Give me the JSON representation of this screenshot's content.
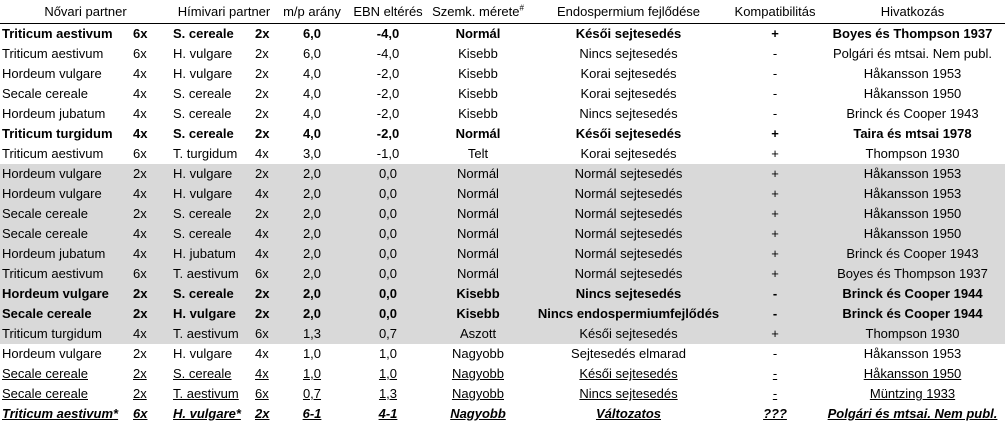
{
  "headers": {
    "female": "Nővari partner",
    "male": "Hímivari partner",
    "mp": "m/p arány",
    "ebn": "EBN eltérés",
    "seed": "Szemk. mérete",
    "seed_mark": "#",
    "endo": "Endospermium fejlődése",
    "compat": "Kompatibilitás",
    "ref": "Hivatkozás"
  },
  "rows": [
    {
      "style": "bold",
      "f": "Triticum aestivum",
      "fp": "6x",
      "m": "S. cereale",
      "mp": "2x",
      "ratio": "6,0",
      "ebn": "-4,0",
      "seed": "Normál",
      "endo": "Késői sejtesedés",
      "compat": "+",
      "ref": "Boyes és Thompson 1937"
    },
    {
      "style": "",
      "f": "Triticum aestivum",
      "fp": "6x",
      "m": "H. vulgare",
      "mp": "2x",
      "ratio": "6,0",
      "ebn": "-4,0",
      "seed": "Kisebb",
      "endo": "Nincs sejtesedés",
      "compat": "-",
      "ref": "Polgári és mtsai. Nem publ."
    },
    {
      "style": "",
      "f": "Hordeum vulgare",
      "fp": "4x",
      "m": "H. vulgare",
      "mp": "2x",
      "ratio": "4,0",
      "ebn": "-2,0",
      "seed": "Kisebb",
      "endo": "Korai sejtesedés",
      "compat": "-",
      "ref": "Håkansson 1953"
    },
    {
      "style": "",
      "f": "Secale cereale",
      "fp": "4x",
      "m": "S. cereale",
      "mp": "2x",
      "ratio": "4,0",
      "ebn": "-2,0",
      "seed": "Kisebb",
      "endo": "Korai sejtesedés",
      "compat": "-",
      "ref": "Håkansson 1950"
    },
    {
      "style": "",
      "f": "Hordeum jubatum",
      "fp": "4x",
      "m": "S. cereale",
      "mp": "2x",
      "ratio": "4,0",
      "ebn": "-2,0",
      "seed": "Kisebb",
      "endo": "Nincs sejtesedés",
      "compat": "-",
      "ref": "Brinck és Cooper 1943"
    },
    {
      "style": "bold",
      "f": "Triticum turgidum",
      "fp": "4x",
      "m": "S. cereale",
      "mp": "2x",
      "ratio": "4,0",
      "ebn": "-2,0",
      "seed": "Normál",
      "endo": "Késői sejtesedés",
      "compat": "+",
      "ref": "Taira és mtsai 1978"
    },
    {
      "style": "",
      "f": "Triticum aestivum",
      "fp": "6x",
      "m": "T. turgidum",
      "mp": "4x",
      "ratio": "3,0",
      "ebn": "-1,0",
      "seed": "Telt",
      "endo": "Korai sejtesedés",
      "compat": "+",
      "ref": "Thompson 1930"
    },
    {
      "style": "grey",
      "f": "Hordeum vulgare",
      "fp": "2x",
      "m": "H. vulgare",
      "mp": "2x",
      "ratio": "2,0",
      "ebn": "0,0",
      "seed": "Normál",
      "endo": "Normál sejtesedés",
      "compat": "+",
      "ref": "Håkansson 1953"
    },
    {
      "style": "grey",
      "f": "Hordeum vulgare",
      "fp": "4x",
      "m": "H. vulgare",
      "mp": "4x",
      "ratio": "2,0",
      "ebn": "0,0",
      "seed": "Normál",
      "endo": "Normál sejtesedés",
      "compat": "+",
      "ref": "Håkansson 1953"
    },
    {
      "style": "grey",
      "f": "Secale cereale",
      "fp": "2x",
      "m": "S. cereale",
      "mp": "2x",
      "ratio": "2,0",
      "ebn": "0,0",
      "seed": "Normál",
      "endo": "Normál sejtesedés",
      "compat": "+",
      "ref": "Håkansson 1950"
    },
    {
      "style": "grey",
      "f": "Secale cereale",
      "fp": "4x",
      "m": "S. cereale",
      "mp": "4x",
      "ratio": "2,0",
      "ebn": "0,0",
      "seed": "Normál",
      "endo": "Normál sejtesedés",
      "compat": "+",
      "ref": "Håkansson 1950"
    },
    {
      "style": "grey",
      "f": "Hordeum jubatum",
      "fp": "4x",
      "m": "H. jubatum",
      "mp": "4x",
      "ratio": "2,0",
      "ebn": "0,0",
      "seed": "Normál",
      "endo": "Normál sejtesedés",
      "compat": "+",
      "ref": "Brinck és Cooper 1943"
    },
    {
      "style": "grey",
      "f": "Triticum aestivum",
      "fp": "6x",
      "m": "T. aestivum",
      "mp": "6x",
      "ratio": "2,0",
      "ebn": "0,0",
      "seed": "Normál",
      "endo": "Normál sejtesedés",
      "compat": "+",
      "ref": "Boyes és Thompson 1937"
    },
    {
      "style": "grey bold",
      "f": "Hordeum vulgare",
      "fp": "2x",
      "m": "S. cereale",
      "mp": "2x",
      "ratio": "2,0",
      "ebn": "0,0",
      "seed": "Kisebb",
      "endo": "Nincs sejtesedés",
      "compat": "-",
      "ref": "Brinck és Cooper 1944"
    },
    {
      "style": "grey bold",
      "f": "Secale cereale",
      "fp": "2x",
      "m": "H. vulgare",
      "mp": "2x",
      "ratio": "2,0",
      "ebn": "0,0",
      "seed": "Kisebb",
      "endo": "Nincs endospermiumfejlődés",
      "compat": "-",
      "ref": "Brinck és Cooper 1944"
    },
    {
      "style": "grey",
      "f": "Triticum turgidum",
      "fp": "4x",
      "m": "T. aestivum",
      "mp": "6x",
      "ratio": "1,3",
      "ebn": "0,7",
      "seed": "Aszott",
      "endo": "Késői sejtesedés",
      "compat": "+",
      "ref": "Thompson 1930"
    },
    {
      "style": "",
      "f": "Hordeum vulgare",
      "fp": "2x",
      "m": "H. vulgare",
      "mp": "4x",
      "ratio": "1,0",
      "ebn": "1,0",
      "seed": "Nagyobb",
      "endo": "Sejtesedés elmarad",
      "compat": "-",
      "ref": "Håkansson 1953"
    },
    {
      "style": "under",
      "f": "Secale cereale",
      "fp": "2x",
      "m": "S. cereale",
      "mp": "4x",
      "ratio": "1,0",
      "ebn": "1,0",
      "seed": "Nagyobb",
      "endo": "Késői sejtesedés",
      "compat": "-",
      "ref": "Håkansson 1950"
    },
    {
      "style": "under",
      "f": "Secale cereale",
      "fp": "2x",
      "m": "T. aestivum",
      "mp": "6x",
      "ratio": "0,7",
      "ebn": "1,3",
      "seed": "Nagyobb",
      "endo": "Nincs sejtesedés",
      "compat": "-",
      "ref": "Müntzing 1933"
    },
    {
      "style": "under bold italic",
      "f": "Triticum aestivum*",
      "fp": "6x",
      "m": "H. vulgare*",
      "mp": "2x",
      "ratio": "6-1",
      "ebn": "4-1",
      "seed": "Nagyobb",
      "endo": "Változatos",
      "compat": "???",
      "ref": "Polgári és mtsai. Nem publ."
    }
  ]
}
